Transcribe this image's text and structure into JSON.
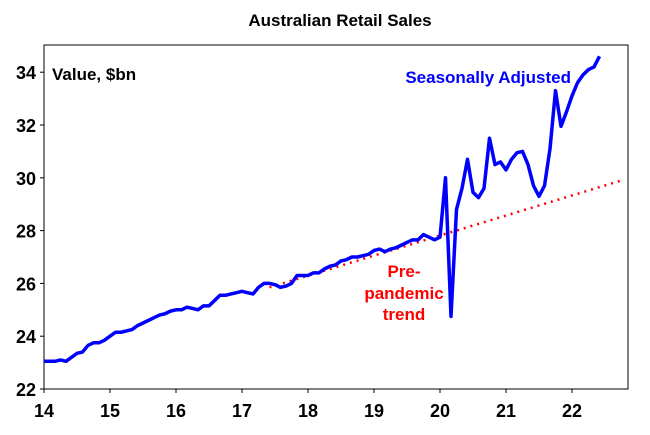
{
  "chart_data": {
    "type": "line",
    "title": "Australian Retail Sales",
    "ylabel": "Value, $bn",
    "xlabel": "",
    "ylim": [
      22,
      35
    ],
    "xlim": [
      "2014-01",
      "2022-11"
    ],
    "yticks": [
      "22",
      "24",
      "26",
      "28",
      "30",
      "32",
      "34"
    ],
    "xticks": [
      "14",
      "15",
      "16",
      "17",
      "18",
      "19",
      "20",
      "21",
      "22"
    ],
    "grid": false,
    "series": [
      {
        "name": "Seasonally Adjusted",
        "color": "#0000ff",
        "x_start": "2014-01",
        "frequency": "monthly",
        "values": [
          23.05,
          23.05,
          23.05,
          23.1,
          23.05,
          23.2,
          23.35,
          23.4,
          23.65,
          23.75,
          23.75,
          23.85,
          24.0,
          24.15,
          24.15,
          24.2,
          24.25,
          24.4,
          24.5,
          24.6,
          24.7,
          24.8,
          24.85,
          24.95,
          25.0,
          25.0,
          25.1,
          25.05,
          25.0,
          25.15,
          25.15,
          25.35,
          25.55,
          25.55,
          25.6,
          25.65,
          25.7,
          25.65,
          25.6,
          25.85,
          26.0,
          26.0,
          25.95,
          25.85,
          25.9,
          26.0,
          26.3,
          26.3,
          26.3,
          26.4,
          26.4,
          26.55,
          26.65,
          26.7,
          26.85,
          26.9,
          27.0,
          27.0,
          27.05,
          27.1,
          27.25,
          27.3,
          27.2,
          27.3,
          27.35,
          27.45,
          27.55,
          27.65,
          27.65,
          27.85,
          27.75,
          27.65,
          27.75,
          30.0,
          24.75,
          28.8,
          29.6,
          30.7,
          29.45,
          29.25,
          29.6,
          31.5,
          30.5,
          30.6,
          30.3,
          30.7,
          30.95,
          31.0,
          30.5,
          29.7,
          29.3,
          29.7,
          31.1,
          33.3,
          31.95,
          32.5,
          33.1,
          33.6,
          33.9,
          34.1,
          34.2,
          34.6
        ]
      },
      {
        "name": "Pre-pandemic trend",
        "color": "#ff0000",
        "style": "dotted",
        "x": [
          "2017-06",
          "2022-10"
        ],
        "values": [
          25.85,
          29.9
        ]
      }
    ],
    "annotations": {
      "seasonally_adjusted": "Seasonally Adjusted",
      "trend_line1": "Pre-",
      "trend_line2": "pandemic",
      "trend_line3": "trend"
    }
  }
}
